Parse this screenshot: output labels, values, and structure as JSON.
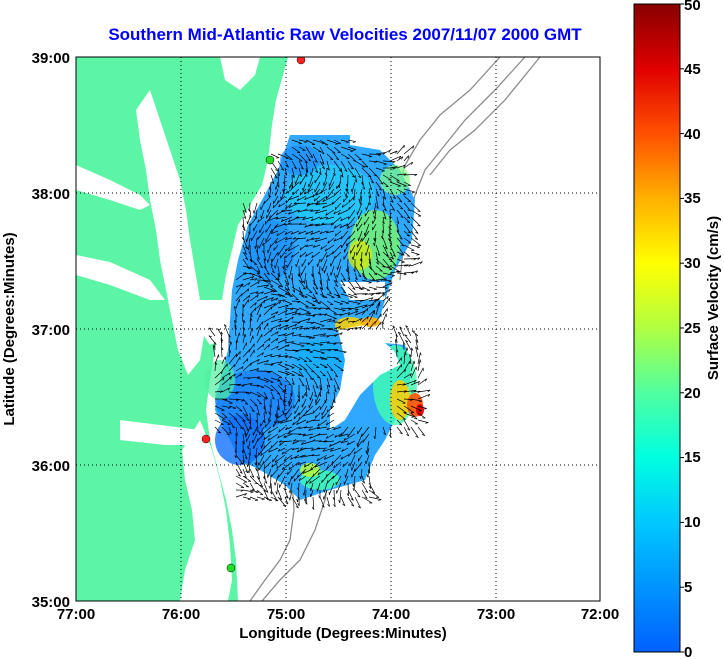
{
  "title": "Southern Mid-Atlantic Raw Velocities 2007/11/07 2000 GMT",
  "xlabel": "Longitude (Degrees:Minutes)",
  "ylabel": "Latitude (Degrees:Minutes)",
  "x_ticks": [
    "77:00",
    "76:00",
    "75:00",
    "74:00",
    "73:00",
    "72:00"
  ],
  "y_ticks": [
    "39:00",
    "38:00",
    "37:00",
    "36:00",
    "35:00"
  ],
  "colorbar": {
    "label": "Surface Velocity (cm/s)",
    "ticks": [
      "0",
      "5",
      "10",
      "15",
      "20",
      "25",
      "30",
      "35",
      "40",
      "45",
      "50"
    ],
    "range": [
      0,
      50
    ],
    "colormap": "jet"
  },
  "colors": {
    "land": "#5cf5a6",
    "title": "#0000ff",
    "grid": "#000000",
    "bathymetry": "#8c8c8c",
    "vectors": "#000000",
    "station_red": "#ff2020",
    "station_green": "#22dd22"
  },
  "map": {
    "lon_range": [
      -77,
      -72
    ],
    "lat_range": [
      35,
      39
    ],
    "grid": "dotted",
    "stations": [
      {
        "type": "red",
        "lon": -74.87,
        "lat": 38.95
      },
      {
        "type": "green",
        "lon": -75.11,
        "lat": 38.22
      },
      {
        "type": "red",
        "lon": -75.76,
        "lat": 36.19
      },
      {
        "type": "green",
        "lon": -75.52,
        "lat": 35.25
      }
    ]
  }
}
